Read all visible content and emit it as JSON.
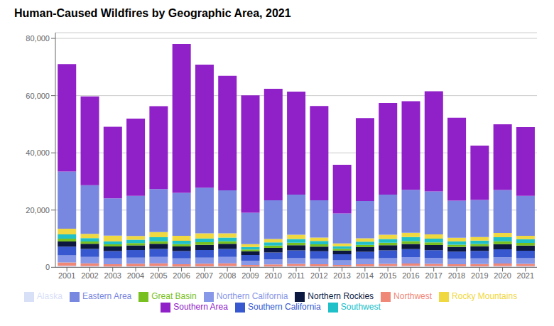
{
  "chart_data": {
    "type": "bar",
    "title": "Human-Caused Wildfires by Geographic Area, 2021",
    "stacked": true,
    "grid": true,
    "legend": "bottom",
    "categories": [
      "2001",
      "2002",
      "2003",
      "2004",
      "2005",
      "2006",
      "2007",
      "2008",
      "2009",
      "2010",
      "2011",
      "2012",
      "2013",
      "2014",
      "2015",
      "2016",
      "2017",
      "2018",
      "2019",
      "2020",
      "2021"
    ],
    "series": [
      {
        "name": "Alaska",
        "color": "#d8e0f8",
        "values": [
          500,
          400,
          300,
          350,
          400,
          300,
          350,
          400,
          200,
          300,
          400,
          350,
          300,
          350,
          400,
          450,
          400,
          350,
          350,
          400,
          400
        ]
      },
      {
        "name": "Northwest",
        "color": "#f08878",
        "values": [
          1200,
          1000,
          800,
          900,
          1000,
          800,
          900,
          1000,
          600,
          700,
          800,
          750,
          550,
          700,
          800,
          900,
          800,
          750,
          800,
          900,
          800
        ]
      },
      {
        "name": "Northern California",
        "color": "#8898e8",
        "values": [
          2500,
          2200,
          2000,
          2100,
          2200,
          2000,
          2100,
          2200,
          1500,
          1800,
          2000,
          1900,
          1600,
          1900,
          2000,
          2200,
          2100,
          1900,
          2000,
          2200,
          2000
        ]
      },
      {
        "name": "Southern California",
        "color": "#3858d0",
        "values": [
          3000,
          2800,
          2600,
          2700,
          2800,
          2600,
          2700,
          2800,
          2000,
          2400,
          2700,
          2600,
          2100,
          2500,
          2700,
          2800,
          2700,
          2500,
          2600,
          2800,
          2600
        ]
      },
      {
        "name": "Northern Rockies",
        "color": "#0c1840",
        "values": [
          1800,
          1800,
          1600,
          1600,
          1800,
          1600,
          1800,
          1800,
          1300,
          1600,
          1800,
          1600,
          1300,
          1600,
          1800,
          1800,
          1800,
          1600,
          1600,
          1800,
          1800
        ]
      },
      {
        "name": "Great Basin",
        "color": "#78c020",
        "values": [
          1000,
          800,
          700,
          800,
          900,
          800,
          900,
          900,
          600,
          800,
          900,
          800,
          600,
          800,
          900,
          1000,
          900,
          800,
          800,
          1000,
          900
        ]
      },
      {
        "name": "Southwest",
        "color": "#20c0c8",
        "values": [
          1500,
          1200,
          1100,
          1200,
          1400,
          1200,
          1300,
          1300,
          900,
          1100,
          1300,
          1200,
          900,
          1100,
          1300,
          1400,
          1300,
          1200,
          1200,
          1400,
          1300
        ]
      },
      {
        "name": "Rocky Mountains",
        "color": "#f0d840",
        "values": [
          2000,
          1500,
          2000,
          1300,
          1800,
          1700,
          1800,
          1500,
          1000,
          1200,
          1500,
          1200,
          1000,
          1200,
          1500,
          1500,
          1500,
          1200,
          1200,
          1500,
          1200
        ]
      },
      {
        "name": "Eastern Area",
        "color": "#7888e0",
        "values": [
          20000,
          17000,
          13000,
          14000,
          15000,
          15000,
          16000,
          15000,
          11000,
          13500,
          14000,
          13000,
          10500,
          13000,
          14000,
          15000,
          15000,
          13000,
          13000,
          15000,
          14000
        ]
      },
      {
        "name": "Southern Area",
        "color": "#9020c8",
        "values": [
          37500,
          31000,
          25000,
          27000,
          29000,
          52000,
          43000,
          40000,
          41000,
          39000,
          36000,
          33000,
          17000,
          29000,
          32000,
          31000,
          35000,
          29000,
          19000,
          23000,
          24000
        ]
      }
    ],
    "ylim": [
      0,
      82000
    ],
    "yticks": [
      0,
      {
        "value": 20000,
        "label": "20,000"
      },
      {
        "value": 40000,
        "label": "40,000"
      },
      {
        "value": 60000,
        "label": "60,000"
      },
      {
        "value": 80000,
        "label": "80,000"
      }
    ]
  }
}
